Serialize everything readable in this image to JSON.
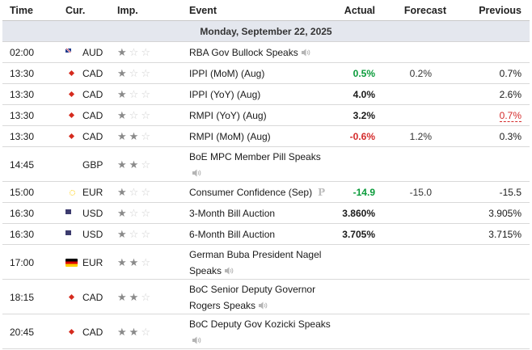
{
  "headers": {
    "time": "Time",
    "currency": "Cur.",
    "importance": "Imp.",
    "event": "Event",
    "actual": "Actual",
    "forecast": "Forecast",
    "previous": "Previous"
  },
  "date_label": "Monday, September 22, 2025",
  "colors": {
    "date_bar": "#e4e7ee",
    "positive": "#0a9b3a",
    "negative": "#d42b2b"
  },
  "rows": [
    {
      "time": "02:00",
      "flag": "au-flag-icon",
      "currency": "AUD",
      "importance": 1,
      "event": "RBA Gov Bullock Speaks",
      "speaker": true,
      "actual": "",
      "actual_color": "",
      "forecast": "",
      "previous": "",
      "previous_revised": false
    },
    {
      "time": "13:30",
      "flag": "ca-flag-icon",
      "currency": "CAD",
      "importance": 1,
      "event": "IPPI (MoM) (Aug)",
      "speaker": false,
      "actual": "0.5%",
      "actual_color": "green",
      "forecast": "0.2%",
      "previous": "0.7%",
      "previous_revised": false
    },
    {
      "time": "13:30",
      "flag": "ca-flag-icon",
      "currency": "CAD",
      "importance": 1,
      "event": "IPPI (YoY) (Aug)",
      "speaker": false,
      "actual": "4.0%",
      "actual_color": "",
      "forecast": "",
      "previous": "2.6%",
      "previous_revised": false
    },
    {
      "time": "13:30",
      "flag": "ca-flag-icon",
      "currency": "CAD",
      "importance": 1,
      "event": "RMPI (YoY) (Aug)",
      "speaker": false,
      "actual": "3.2%",
      "actual_color": "",
      "forecast": "",
      "previous": "0.7%",
      "previous_revised": true
    },
    {
      "time": "13:30",
      "flag": "ca-flag-icon",
      "currency": "CAD",
      "importance": 2,
      "event": "RMPI (MoM) (Aug)",
      "speaker": false,
      "actual": "-0.6%",
      "actual_color": "red",
      "forecast": "1.2%",
      "previous": "0.3%",
      "previous_revised": false
    },
    {
      "time": "14:45",
      "flag": "gb-flag-icon",
      "currency": "GBP",
      "importance": 2,
      "event": "BoE MPC Member Pill Speaks",
      "speaker": true,
      "actual": "",
      "actual_color": "",
      "forecast": "",
      "previous": "",
      "previous_revised": false
    },
    {
      "time": "15:00",
      "flag": "eu-flag-icon",
      "currency": "EUR",
      "importance": 1,
      "event": "Consumer Confidence (Sep)",
      "speaker": false,
      "preliminary": "P",
      "actual": "-14.9",
      "actual_color": "green",
      "forecast": "-15.0",
      "previous": "-15.5",
      "previous_revised": false
    },
    {
      "time": "16:30",
      "flag": "us-flag-icon",
      "currency": "USD",
      "importance": 1,
      "event": "3-Month Bill Auction",
      "speaker": false,
      "actual": "3.860%",
      "actual_color": "",
      "forecast": "",
      "previous": "3.905%",
      "previous_revised": false
    },
    {
      "time": "16:30",
      "flag": "us-flag-icon",
      "currency": "USD",
      "importance": 1,
      "event": "6-Month Bill Auction",
      "speaker": false,
      "actual": "3.705%",
      "actual_color": "",
      "forecast": "",
      "previous": "3.715%",
      "previous_revised": false
    },
    {
      "time": "17:00",
      "flag": "de-flag-icon",
      "currency": "EUR",
      "importance": 2,
      "event": "German Buba President Nagel Speaks",
      "speaker": true,
      "actual": "",
      "actual_color": "",
      "forecast": "",
      "previous": "",
      "previous_revised": false
    },
    {
      "time": "18:15",
      "flag": "ca-flag-icon",
      "currency": "CAD",
      "importance": 2,
      "event": "BoC Senior Deputy Governor Rogers Speaks",
      "speaker": true,
      "actual": "",
      "actual_color": "",
      "forecast": "",
      "previous": "",
      "previous_revised": false
    },
    {
      "time": "20:45",
      "flag": "ca-flag-icon",
      "currency": "CAD",
      "importance": 2,
      "event": "BoC Deputy Gov Kozicki Speaks",
      "speaker": true,
      "actual": "",
      "actual_color": "",
      "forecast": "",
      "previous": "",
      "previous_revised": false
    }
  ]
}
